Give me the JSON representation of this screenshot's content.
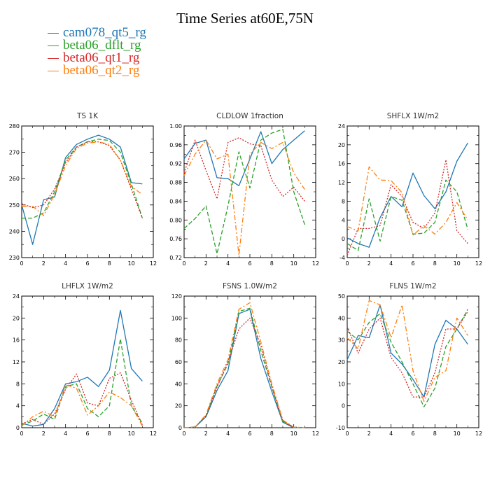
{
  "title": "Time Series at60E,75N",
  "legend": [
    {
      "name": "cam078_qt5_rg",
      "color": "#1f77b4"
    },
    {
      "name": "beta06_dflt_rg",
      "color": "#2ca02c"
    },
    {
      "name": "beta06_qt1_rg",
      "color": "#d62728"
    },
    {
      "name": "beta06_qt2_rg",
      "color": "#ff7f0e"
    }
  ],
  "chart_data": [
    {
      "type": "line",
      "title": "TS   1K",
      "x": [
        0,
        1,
        2,
        3,
        4,
        5,
        6,
        7,
        8,
        9,
        10,
        11
      ],
      "xlim": [
        0,
        12
      ],
      "xticks": [
        0,
        2,
        4,
        6,
        8,
        10,
        12
      ],
      "ylim": [
        230,
        280
      ],
      "yticks": [
        230,
        240,
        250,
        260,
        270,
        280
      ],
      "series": [
        {
          "name": "cam078_qt5_rg",
          "values": [
            250,
            235,
            252,
            253,
            268,
            273,
            275,
            276.5,
            275,
            272,
            258.5,
            258
          ]
        },
        {
          "name": "beta06_dflt_rg",
          "values": [
            245,
            245,
            247,
            255,
            267,
            272,
            274,
            275,
            274.5,
            270,
            258,
            245
          ]
        },
        {
          "name": "beta06_qt1_rg",
          "values": [
            250.5,
            249,
            250,
            256,
            266,
            272,
            274,
            274,
            272.5,
            267,
            256,
            245
          ]
        },
        {
          "name": "beta06_qt2_rg",
          "values": [
            249.5,
            249.5,
            246,
            254,
            265,
            271.5,
            273.5,
            274,
            273,
            267,
            257,
            254
          ]
        }
      ]
    },
    {
      "type": "line",
      "title": "CLDLOW   1fraction",
      "x": [
        0,
        1,
        2,
        3,
        4,
        5,
        6,
        7,
        8,
        9,
        10,
        11
      ],
      "xlim": [
        0,
        12
      ],
      "xticks": [
        0,
        2,
        4,
        6,
        8,
        10,
        12
      ],
      "ylim": [
        0.72,
        1.0
      ],
      "yticks": [
        0.72,
        0.76,
        0.8,
        0.84,
        0.88,
        0.92,
        0.96,
        1.0
      ],
      "series": [
        {
          "name": "cam078_qt5_rg",
          "values": [
            0.93,
            0.963,
            0.97,
            0.89,
            0.888,
            0.873,
            0.93,
            0.988,
            0.92,
            0.95,
            0.97,
            0.99
          ]
        },
        {
          "name": "beta06_dflt_rg",
          "values": [
            0.782,
            0.803,
            0.83,
            0.728,
            0.83,
            0.945,
            0.868,
            0.97,
            0.985,
            0.993,
            0.86,
            0.79
          ]
        },
        {
          "name": "beta06_qt1_rg",
          "values": [
            0.9,
            0.97,
            0.905,
            0.845,
            0.965,
            0.975,
            0.962,
            0.958,
            0.885,
            0.85,
            0.87,
            0.84
          ]
        },
        {
          "name": "beta06_qt2_rg",
          "values": [
            0.895,
            0.94,
            0.97,
            0.93,
            0.94,
            0.725,
            0.94,
            0.965,
            0.952,
            0.965,
            0.9,
            0.865
          ]
        }
      ]
    },
    {
      "type": "line",
      "title": "SHFLX   1W/m2",
      "x": [
        0,
        1,
        2,
        3,
        4,
        5,
        6,
        7,
        8,
        9,
        10,
        11
      ],
      "xlim": [
        0,
        12
      ],
      "xticks": [
        0,
        2,
        4,
        6,
        8,
        10,
        12
      ],
      "ylim": [
        -4,
        24
      ],
      "yticks": [
        -4,
        0,
        4,
        8,
        12,
        16,
        20,
        24
      ],
      "series": [
        {
          "name": "cam078_qt5_rg",
          "values": [
            0.2,
            -1,
            -1.8,
            4.5,
            9,
            6.8,
            14,
            9.2,
            6.4,
            10,
            16.5,
            20.4
          ]
        },
        {
          "name": "beta06_dflt_rg",
          "values": [
            -1,
            -2.5,
            8.5,
            -0.5,
            9,
            8.2,
            1,
            1.2,
            3.5,
            12.5,
            10,
            2
          ]
        },
        {
          "name": "beta06_qt1_rg",
          "values": [
            -3.5,
            2.2,
            2.2,
            2.8,
            11.5,
            9,
            3.5,
            2.2,
            5.5,
            16.8,
            1.7,
            -1
          ]
        },
        {
          "name": "beta06_qt2_rg",
          "values": [
            2.6,
            1.7,
            15.3,
            12.5,
            12.4,
            9.8,
            0.8,
            2.8,
            1,
            3.5,
            7.7,
            4
          ]
        }
      ]
    },
    {
      "type": "line",
      "title": "LHFLX   1W/m2",
      "x": [
        0,
        1,
        2,
        3,
        4,
        5,
        6,
        7,
        8,
        9,
        10,
        11
      ],
      "xlim": [
        0,
        12
      ],
      "xticks": [
        0,
        2,
        4,
        6,
        8,
        10,
        12
      ],
      "ylim": [
        0,
        24
      ],
      "yticks": [
        0,
        4,
        8,
        12,
        16,
        20,
        24
      ],
      "series": [
        {
          "name": "cam078_qt5_rg",
          "values": [
            0.8,
            0.3,
            0.6,
            3.5,
            8,
            8.4,
            9.2,
            7.5,
            10.5,
            21.4,
            10.8,
            8.5
          ]
        },
        {
          "name": "beta06_dflt_rg",
          "values": [
            0.5,
            1.2,
            2.5,
            1.5,
            7.5,
            8,
            3.5,
            2,
            4,
            16.2,
            4,
            0.8
          ]
        },
        {
          "name": "beta06_qt1_rg",
          "values": [
            0.7,
            1.5,
            0.6,
            2.5,
            7,
            9.8,
            4.5,
            4,
            9,
            10,
            5,
            0.5
          ]
        },
        {
          "name": "beta06_qt2_rg",
          "values": [
            0.3,
            2,
            3,
            2,
            7.8,
            7.2,
            2.3,
            4,
            6.5,
            5.5,
            4,
            0.3
          ]
        }
      ]
    },
    {
      "type": "line",
      "title": "FSNS   1.0W/m2",
      "x": [
        0,
        1,
        2,
        3,
        4,
        5,
        6,
        7,
        8,
        9,
        10,
        11
      ],
      "xlim": [
        0,
        12
      ],
      "xticks": [
        0,
        2,
        4,
        6,
        8,
        10,
        12
      ],
      "ylim": [
        0,
        120
      ],
      "yticks": [
        0,
        20,
        40,
        60,
        80,
        100,
        120
      ],
      "series": [
        {
          "name": "cam078_qt5_rg",
          "values": [
            0,
            0.5,
            10,
            34,
            52,
            104,
            108,
            63,
            33,
            5,
            0,
            0
          ]
        },
        {
          "name": "beta06_dflt_rg",
          "values": [
            0,
            0.5,
            11,
            38,
            58,
            106,
            109,
            70,
            37,
            6,
            0.5,
            0
          ]
        },
        {
          "name": "beta06_qt1_rg",
          "values": [
            0,
            0.5,
            11,
            37,
            60,
            90,
            100,
            75,
            38,
            6,
            0.5,
            0
          ]
        },
        {
          "name": "beta06_qt2_rg",
          "values": [
            0,
            0.5,
            12,
            40,
            62,
            108,
            114,
            78,
            40,
            7,
            0.5,
            0
          ]
        }
      ]
    },
    {
      "type": "line",
      "title": "FLNS   1W/m2",
      "x": [
        0,
        1,
        2,
        3,
        4,
        5,
        6,
        7,
        8,
        9,
        10,
        11
      ],
      "xlim": [
        0,
        12
      ],
      "xticks": [
        0,
        2,
        4,
        6,
        8,
        10,
        12
      ],
      "ylim": [
        -10,
        50
      ],
      "yticks": [
        -10,
        0,
        10,
        20,
        30,
        40,
        50
      ],
      "series": [
        {
          "name": "cam078_qt5_rg",
          "values": [
            21,
            32,
            31,
            46,
            24,
            19,
            12,
            4,
            28,
            39,
            35,
            28
          ]
        },
        {
          "name": "beta06_dflt_rg",
          "values": [
            34,
            30,
            38,
            42,
            29,
            20,
            10,
            -0.5,
            8,
            27,
            35,
            44
          ]
        },
        {
          "name": "beta06_qt1_rg",
          "values": [
            36,
            24,
            35,
            40,
            22,
            15,
            4,
            4,
            15,
            35,
            35,
            43
          ]
        },
        {
          "name": "beta06_qt2_rg",
          "values": [
            31,
            26,
            48,
            46,
            31,
            46,
            16,
            2,
            13,
            16,
            40,
            32
          ]
        }
      ]
    }
  ]
}
